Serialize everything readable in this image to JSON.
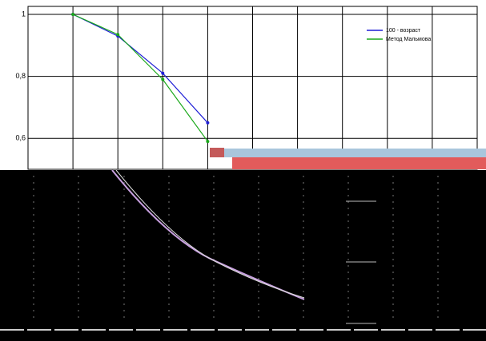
{
  "chart_data": {
    "type": "line",
    "x": [
      1,
      2,
      3,
      4
    ],
    "xlim": [
      0,
      10
    ],
    "xticks": [
      0,
      1,
      2,
      3,
      4,
      5,
      6,
      7,
      8,
      9,
      10
    ],
    "ylim": [
      0.5,
      1.0
    ],
    "yticks": [
      1,
      {
        "value": 0.8,
        "label": "0,8"
      },
      {
        "value": 0.6,
        "label": "0,6"
      }
    ],
    "grid": true,
    "legend": "upper right",
    "series": [
      {
        "name": "100 - возраст",
        "color": "#1f1fd6",
        "values": [
          1.0,
          0.93,
          0.81,
          0.65
        ]
      },
      {
        "name": "Метод Мальмова",
        "color": "#1aa81a",
        "values": [
          1.0,
          0.935,
          0.79,
          0.59
        ]
      }
    ]
  }
}
